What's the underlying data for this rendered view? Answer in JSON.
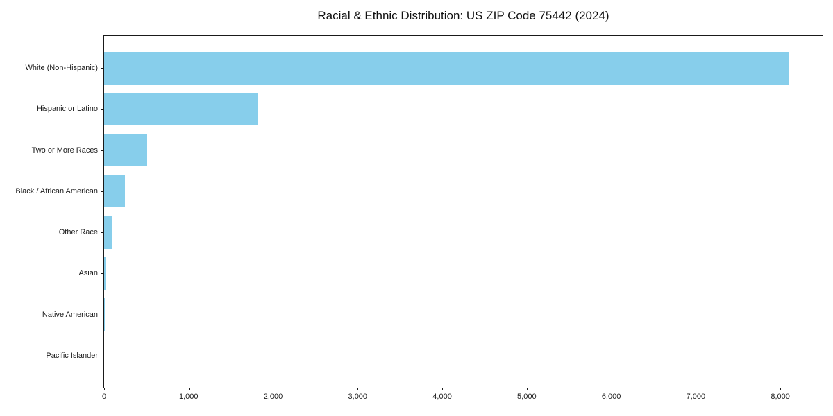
{
  "title": "Racial & Ethnic Distribution: US ZIP Code 75442 (2024)",
  "chart_data": {
    "type": "bar",
    "orientation": "horizontal",
    "title": "Racial & Ethnic Distribution: US ZIP Code 75442 (2024)",
    "xlabel": "",
    "ylabel": "",
    "categories": [
      "White (Non-Hispanic)",
      "Hispanic or Latino",
      "Two or More Races",
      "Black / African American",
      "Other Race",
      "Asian",
      "Native American",
      "Pacific Islander"
    ],
    "values": [
      8100,
      1820,
      510,
      245,
      95,
      15,
      5,
      0
    ],
    "bar_color": "#87CEEB",
    "axis_color": "#1a1a1a",
    "xlim": [
      0,
      8500
    ],
    "x_ticks": [
      0,
      1000,
      2000,
      3000,
      4000,
      5000,
      6000,
      7000,
      8000
    ],
    "x_tick_labels": [
      "0",
      "1,000",
      "2,000",
      "3,000",
      "4,000",
      "5,000",
      "6,000",
      "7,000",
      "8,000"
    ],
    "grid": false,
    "legend": "none"
  }
}
